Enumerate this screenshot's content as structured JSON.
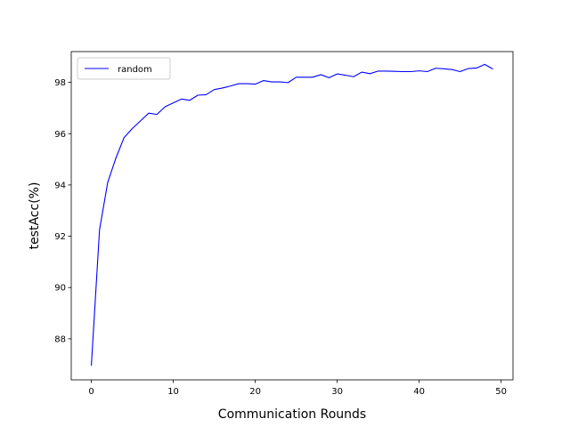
{
  "chart_data": {
    "type": "line",
    "xlabel": "Communication Rounds",
    "ylabel": "testAcc(%)",
    "xlim": [
      -2.45,
      51.45
    ],
    "ylim": [
      86.4,
      99.2
    ],
    "xticks": [
      0,
      10,
      20,
      30,
      40,
      50
    ],
    "yticks": [
      88,
      90,
      92,
      94,
      96,
      98
    ],
    "grid": false,
    "legend_position": "top-left",
    "series": [
      {
        "name": "random",
        "color": "#0000ff",
        "x": [
          0,
          1,
          2,
          3,
          4,
          5,
          6,
          7,
          8,
          9,
          10,
          11,
          12,
          13,
          14,
          15,
          16,
          17,
          18,
          19,
          20,
          21,
          22,
          23,
          24,
          25,
          26,
          27,
          28,
          29,
          30,
          31,
          32,
          33,
          34,
          35,
          36,
          37,
          38,
          39,
          40,
          41,
          42,
          43,
          44,
          45,
          46,
          47,
          48,
          49
        ],
        "y": [
          86.95,
          92.25,
          94.1,
          95.05,
          95.85,
          96.2,
          96.5,
          96.8,
          96.75,
          97.05,
          97.2,
          97.35,
          97.3,
          97.5,
          97.52,
          97.72,
          97.78,
          97.86,
          97.95,
          97.95,
          97.93,
          98.07,
          98.02,
          98.02,
          97.99,
          98.2,
          98.2,
          98.2,
          98.3,
          98.18,
          98.33,
          98.28,
          98.22,
          98.4,
          98.34,
          98.44,
          98.44,
          98.43,
          98.42,
          98.42,
          98.45,
          98.42,
          98.55,
          98.53,
          98.5,
          98.42,
          98.54,
          98.56,
          98.7,
          98.52
        ]
      }
    ]
  }
}
